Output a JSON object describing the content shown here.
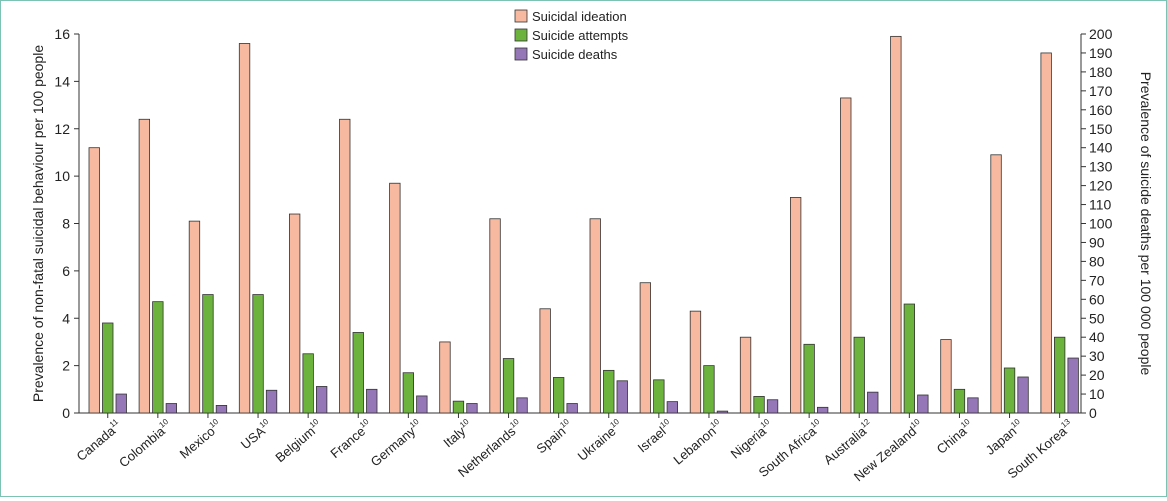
{
  "chart_data": {
    "type": "bar",
    "categories": [
      "Canada",
      "Colombia",
      "Mexico",
      "USA",
      "Belgium",
      "France",
      "Germany",
      "Italy",
      "Netherlands",
      "Spain",
      "Ukraine",
      "Israel",
      "Lebanon",
      "Nigeria",
      "South Africa",
      "Australia",
      "New Zealand",
      "China",
      "Japan",
      "South Korea"
    ],
    "category_superscripts": [
      "11",
      "10",
      "10",
      "10",
      "10",
      "10",
      "10",
      "10",
      "10",
      "10",
      "10",
      "10",
      "10",
      "10",
      "10",
      "12",
      "10",
      "10",
      "10",
      "13"
    ],
    "series": [
      {
        "name": "Suicidal ideation",
        "axis": "left",
        "color": "#f7b9a0",
        "values": [
          11.2,
          12.4,
          8.1,
          15.6,
          8.4,
          12.4,
          9.7,
          3.0,
          8.2,
          4.4,
          8.2,
          5.5,
          4.3,
          3.2,
          9.1,
          13.3,
          15.9,
          3.1,
          10.9,
          15.2
        ]
      },
      {
        "name": "Suicide attempts",
        "axis": "left",
        "color": "#6cb33e",
        "values": [
          3.8,
          4.7,
          5.0,
          5.0,
          2.5,
          3.4,
          1.7,
          0.5,
          2.3,
          1.5,
          1.8,
          1.4,
          2.0,
          0.7,
          2.9,
          3.2,
          4.6,
          1.0,
          1.9,
          3.2
        ]
      },
      {
        "name": "Suicide deaths",
        "axis": "right",
        "color": "#9577b8",
        "values": [
          10,
          5,
          4,
          12,
          14,
          12.5,
          9,
          5,
          8,
          5,
          17,
          6,
          1,
          7,
          3,
          11,
          9.5,
          8,
          19,
          29
        ]
      }
    ],
    "ylabel": "Prevalence of non-fatal suicidal behaviour per 100 people",
    "y2label": "Prevalence of suicide deaths per 100 000 people",
    "ylim": [
      0,
      16
    ],
    "y2lim": [
      0,
      200
    ],
    "yticks": [
      "0",
      "2",
      "4",
      "6",
      "8",
      "10",
      "12",
      "14",
      "16"
    ],
    "y2ticks": [
      "0",
      "10",
      "20",
      "30",
      "40",
      "50",
      "60",
      "70",
      "80",
      "90",
      "100",
      "110",
      "120",
      "130",
      "140",
      "150",
      "160",
      "170",
      "180",
      "190",
      "200"
    ],
    "legend_position": "top-center",
    "grid": false
  }
}
